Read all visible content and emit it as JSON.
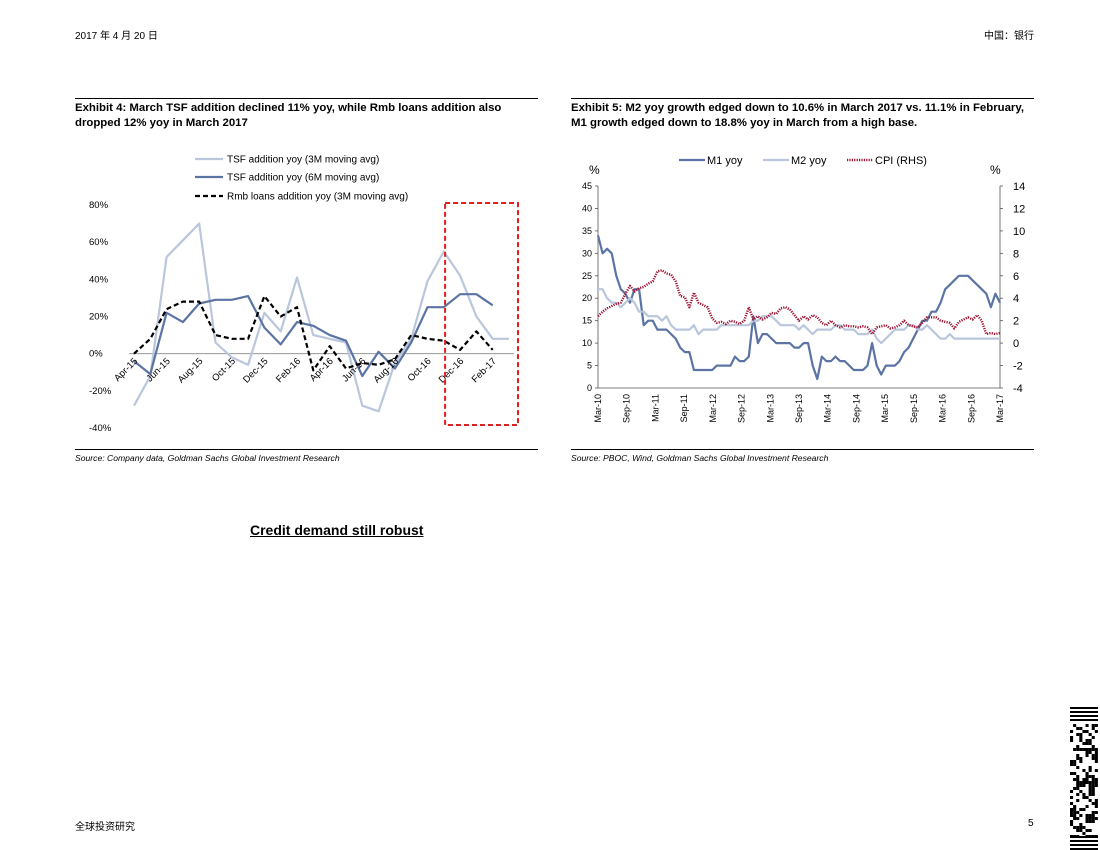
{
  "header": {
    "date": "2017 年 4 月 20 日",
    "sector": "中国：银行"
  },
  "exhibit4": {
    "title": "Exhibit 4: March TSF addition declined 11% yoy, while Rmb loans addition also dropped 12% yoy in March 2017",
    "source": "Source: Company data, Goldman Sachs Global Investment Research"
  },
  "exhibit5": {
    "title": "Exhibit 5: M2 yoy growth edged down to 10.6% in March 2017 vs. 11.1% in February, M1 growth edged down to 18.8% yoy in March from a high base.",
    "source": "Source: PBOC, Wind, Goldman Sachs Global Investment Research"
  },
  "section_heading": "Credit demand still robust",
  "footer": {
    "left": "全球投资研究",
    "page": "5"
  },
  "colors": {
    "light": "#b9c6dc",
    "dark": "#5b74a4",
    "black": "#000000",
    "cpi": "#a01030",
    "highlight": "#e02020"
  },
  "chart_data": [
    {
      "type": "line",
      "title": "",
      "categories": [
        "Apr-15",
        "May-15",
        "Jun-15",
        "Jul-15",
        "Aug-15",
        "Sep-15",
        "Oct-15",
        "Nov-15",
        "Dec-15",
        "Jan-16",
        "Feb-16",
        "Mar-16",
        "Apr-16",
        "May-16",
        "Jun-16",
        "Jul-16",
        "Aug-16",
        "Sep-16",
        "Oct-16",
        "Nov-16",
        "Dec-16",
        "Jan-17",
        "Feb-17",
        "Mar-17"
      ],
      "tick_labels": [
        "Apr-15",
        "Jun-15",
        "Aug-15",
        "Oct-15",
        "Dec-15",
        "Feb-16",
        "Apr-16",
        "Jun-16",
        "Aug-16",
        "Oct-16",
        "Dec-16",
        "Feb-17"
      ],
      "yticks": [
        "80%",
        "60%",
        "40%",
        "20%",
        "0%",
        "-20%",
        "-40%"
      ],
      "ylim": [
        -40,
        80
      ],
      "series": [
        {
          "name": "TSF addition yoy (3M moving avg)",
          "style": "light",
          "values": [
            -28,
            -12,
            52,
            61,
            70,
            6,
            -2,
            -6,
            22,
            12,
            41,
            10,
            8,
            6,
            -28,
            -31,
            -5,
            8,
            39,
            55,
            42,
            20,
            8,
            8
          ]
        },
        {
          "name": "TSF addition yoy (6M moving avg)",
          "style": "dark",
          "values": [
            -4,
            -11,
            22,
            17,
            27,
            29,
            29,
            31,
            14,
            5,
            17,
            15,
            10,
            7,
            -12,
            1,
            -8,
            6,
            25,
            25,
            32,
            32,
            26,
            null
          ]
        },
        {
          "name": "Rmb loans addition yoy (3M moving avg)",
          "style": "dashed",
          "values": [
            0,
            8,
            24,
            28,
            28,
            10,
            8,
            8,
            31,
            20,
            25,
            -9,
            4,
            -8,
            -5,
            -6,
            -3,
            10,
            8,
            7,
            2,
            12,
            2,
            null
          ]
        }
      ],
      "highlight_label": "Dec-16 to Mar-17"
    },
    {
      "type": "line",
      "title": "",
      "tick_labels": [
        "Mar-10",
        "Sep-10",
        "Mar-11",
        "Sep-11",
        "Mar-12",
        "Sep-12",
        "Mar-13",
        "Sep-13",
        "Mar-14",
        "Sep-14",
        "Mar-15",
        "Sep-15",
        "Mar-16",
        "Sep-16",
        "Mar-17"
      ],
      "ylabel": "%",
      "ylabel_right": "%",
      "ylim": [
        0,
        45
      ],
      "ylim_right": [
        -4,
        14
      ],
      "yticks": [
        "0",
        "5",
        "10",
        "15",
        "20",
        "25",
        "30",
        "35",
        "40",
        "45"
      ],
      "yticks_right": [
        "-4",
        "-2",
        "0",
        "2",
        "4",
        "6",
        "8",
        "10",
        "12",
        "14"
      ],
      "series": [
        {
          "name": "M1 yoy",
          "style": "dark",
          "axis": "left",
          "values": [
            34,
            30,
            31,
            30,
            25,
            22,
            21,
            19,
            22,
            22,
            14,
            15,
            15,
            13,
            13,
            13,
            12,
            11,
            9,
            8,
            8,
            4,
            4,
            4,
            4,
            4,
            5,
            5,
            5,
            5,
            7,
            6,
            6,
            7,
            16,
            10,
            12,
            12,
            11,
            10,
            10,
            10,
            10,
            9,
            9,
            10,
            10,
            5,
            2,
            7,
            6,
            6,
            7,
            6,
            6,
            5,
            4,
            4,
            4,
            5,
            10,
            5,
            3,
            5,
            5,
            5,
            6,
            8,
            9,
            11,
            13,
            15,
            15,
            17,
            17,
            19,
            22,
            23,
            24,
            25,
            25,
            25,
            24,
            23,
            22,
            21,
            18,
            21,
            19
          ]
        },
        {
          "name": "M2 yoy",
          "style": "light",
          "axis": "left",
          "values": [
            22,
            22,
            20,
            19,
            19,
            18,
            19,
            20,
            19,
            17,
            17,
            16,
            16,
            16,
            15,
            16,
            14,
            13,
            13,
            13,
            13,
            14,
            12,
            13,
            13,
            13,
            13,
            14,
            14,
            14,
            14,
            14,
            14,
            14,
            15,
            15,
            16,
            16,
            16,
            15,
            14,
            14,
            14,
            14,
            13,
            14,
            13,
            12,
            13,
            13,
            13,
            13,
            14,
            14,
            13,
            13,
            13,
            12,
            12,
            12,
            13,
            11,
            10,
            11,
            12,
            13,
            13,
            13,
            14,
            14,
            13,
            13,
            14,
            13,
            12,
            11,
            11,
            12,
            11,
            11,
            11,
            11,
            11,
            11,
            11,
            11,
            11,
            11,
            11
          ]
        },
        {
          "name": "CPI (RHS)",
          "style": "cpi",
          "axis": "right",
          "values": [
            2.4,
            2.8,
            3.1,
            3.3,
            3.5,
            3.6,
            4.4,
            5.1,
            4.6,
            4.9,
            5.0,
            5.3,
            5.5,
            6.4,
            6.5,
            6.2,
            6.1,
            5.5,
            4.2,
            4.1,
            3.2,
            4.5,
            3.6,
            3.4,
            3.2,
            2.2,
            1.8,
            1.9,
            1.7,
            2.0,
            1.9,
            1.7,
            2.0,
            3.2,
            2.1,
            2.4,
            2.1,
            2.3,
            2.7,
            2.6,
            3.1,
            3.2,
            3.0,
            2.5,
            2.0,
            2.4,
            2.1,
            2.5,
            2.3,
            1.8,
            1.6,
            2.0,
            1.6,
            1.4,
            1.6,
            1.5,
            1.5,
            1.4,
            1.5,
            1.4,
            0.8,
            1.4,
            1.5,
            1.6,
            1.3,
            1.4,
            1.6,
            2.0,
            1.6,
            1.5,
            1.4,
            1.8,
            2.3,
            2.3,
            2.3,
            2.0,
            1.9,
            1.8,
            1.3,
            1.9,
            2.1,
            2.3,
            2.1,
            2.5,
            2.0,
            0.8,
            0.9,
            0.8,
            0.9
          ]
        }
      ]
    }
  ]
}
